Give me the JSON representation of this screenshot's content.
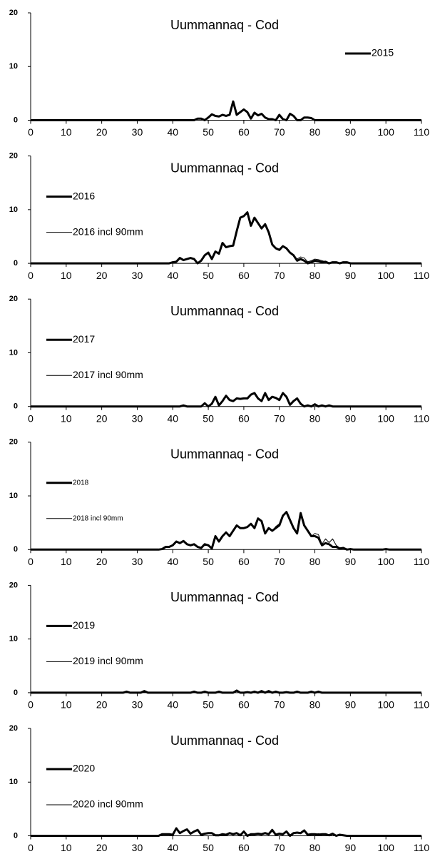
{
  "chart_data": [
    {
      "type": "line",
      "title": "Uummannaq - Cod",
      "legend": "upper right",
      "xlim": [
        0,
        110
      ],
      "ylim": [
        0,
        20
      ],
      "xticks": [
        0,
        10,
        20,
        30,
        40,
        50,
        60,
        70,
        80,
        90,
        100,
        110
      ],
      "yticks": [
        0,
        10,
        20
      ],
      "x": [
        0,
        46,
        47,
        48,
        49,
        50,
        51,
        52,
        53,
        54,
        55,
        56,
        57,
        58,
        59,
        60,
        61,
        62,
        63,
        64,
        65,
        66,
        67,
        68,
        69,
        70,
        71,
        72,
        73,
        74,
        75,
        76,
        77,
        78,
        79,
        80,
        110
      ],
      "series": [
        {
          "name": "2015",
          "color": "#000000",
          "line_width": 3,
          "values": [
            0,
            0,
            0.3,
            0.3,
            0,
            0.5,
            1.1,
            0.8,
            0.7,
            1.0,
            0.8,
            1.0,
            3.5,
            1.0,
            1.5,
            2.0,
            1.5,
            0.3,
            1.4,
            0.9,
            1.2,
            0.5,
            0.2,
            0.2,
            0,
            1.0,
            0.2,
            0,
            1.2,
            0.8,
            0,
            0,
            0.5,
            0.5,
            0.4,
            0,
            0
          ]
        }
      ]
    },
    {
      "type": "line",
      "title": "Uummannaq - Cod",
      "legend": "upper left",
      "xlim": [
        0,
        110
      ],
      "ylim": [
        0,
        20
      ],
      "xticks": [
        0,
        10,
        20,
        30,
        40,
        50,
        60,
        70,
        80,
        90,
        100,
        110
      ],
      "yticks": [
        0,
        10,
        20
      ],
      "x": [
        0,
        38,
        39,
        40,
        41,
        42,
        43,
        44,
        45,
        46,
        47,
        48,
        49,
        50,
        51,
        52,
        53,
        54,
        55,
        56,
        57,
        58,
        59,
        60,
        61,
        62,
        63,
        64,
        65,
        66,
        67,
        68,
        69,
        70,
        71,
        72,
        73,
        74,
        75,
        76,
        77,
        78,
        79,
        80,
        81,
        82,
        83,
        84,
        85,
        86,
        87,
        88,
        89,
        90,
        110
      ],
      "series": [
        {
          "name": "2016",
          "color": "#000000",
          "line_width": 3,
          "values": [
            0,
            0,
            0,
            0.2,
            0.3,
            1.0,
            0.6,
            0.8,
            1.0,
            0.8,
            0,
            0.5,
            1.5,
            2.0,
            0.8,
            2.2,
            1.8,
            3.8,
            3.0,
            3.2,
            3.3,
            6.0,
            8.5,
            8.8,
            9.5,
            7.0,
            8.5,
            7.5,
            6.5,
            7.3,
            5.8,
            3.5,
            2.8,
            2.5,
            3.2,
            2.8,
            2.0,
            1.5,
            0.5,
            0.8,
            0.5,
            0,
            0.2,
            0.5,
            0.4,
            0.2,
            0.3,
            0,
            0.2,
            0.2,
            0,
            0.2,
            0.2,
            0,
            0
          ]
        },
        {
          "name": "2016 incl 90mm",
          "color": "#000000",
          "line_width": 1,
          "values": [
            0,
            0,
            0,
            0.2,
            0.3,
            1.0,
            0.6,
            0.8,
            1.0,
            0.8,
            0,
            0.5,
            1.5,
            2.0,
            0.8,
            2.2,
            1.8,
            3.8,
            3.0,
            3.2,
            3.3,
            6.0,
            8.5,
            8.8,
            9.5,
            7.0,
            8.5,
            7.5,
            6.5,
            7.3,
            5.8,
            3.5,
            2.8,
            2.5,
            3.2,
            2.8,
            2.0,
            1.5,
            0.8,
            1.2,
            1.0,
            0.3,
            0.5,
            0.8,
            0.7,
            0.5,
            0.3,
            0,
            0.2,
            0.2,
            0,
            0.2,
            0.2,
            0,
            0
          ]
        }
      ]
    },
    {
      "type": "line",
      "title": "Uummannaq - Cod",
      "legend": "upper left",
      "xlim": [
        0,
        110
      ],
      "ylim": [
        0,
        20
      ],
      "xticks": [
        0,
        10,
        20,
        30,
        40,
        50,
        60,
        70,
        80,
        90,
        100,
        110
      ],
      "yticks": [
        0,
        10,
        20
      ],
      "x": [
        0,
        42,
        43,
        44,
        45,
        46,
        47,
        48,
        49,
        50,
        51,
        52,
        53,
        54,
        55,
        56,
        57,
        58,
        59,
        60,
        61,
        62,
        63,
        64,
        65,
        66,
        67,
        68,
        69,
        70,
        71,
        72,
        73,
        74,
        75,
        76,
        77,
        78,
        79,
        80,
        81,
        82,
        83,
        84,
        85,
        110
      ],
      "series": [
        {
          "name": "2017",
          "color": "#000000",
          "line_width": 3,
          "values": [
            0,
            0,
            0.2,
            0,
            0,
            0,
            0,
            0,
            0.6,
            0,
            0.5,
            1.8,
            0.2,
            1.0,
            2.0,
            1.2,
            1.0,
            1.5,
            1.4,
            1.5,
            1.5,
            2.2,
            2.5,
            1.5,
            1.0,
            2.5,
            1.2,
            1.8,
            1.6,
            1.2,
            2.5,
            1.8,
            0.3,
            1.0,
            1.5,
            0.5,
            0,
            0.2,
            0,
            0.4,
            0,
            0.2,
            0,
            0.2,
            0,
            0
          ]
        },
        {
          "name": "2017 incl 90mm",
          "color": "#000000",
          "line_width": 1,
          "values": [
            0,
            0,
            0.2,
            0,
            0,
            0,
            0,
            0,
            0.6,
            0,
            0.5,
            1.8,
            0.2,
            1.0,
            2.0,
            1.2,
            1.0,
            1.5,
            1.4,
            1.5,
            1.5,
            2.2,
            2.5,
            1.5,
            1.0,
            2.5,
            1.2,
            1.8,
            1.6,
            1.2,
            2.5,
            1.8,
            0.3,
            1.0,
            1.5,
            0.5,
            0,
            0.3,
            0,
            0.5,
            0,
            0.2,
            0,
            0.2,
            0,
            0
          ]
        }
      ]
    },
    {
      "type": "line",
      "title": "Uummannaq - Cod",
      "legend": "upper left",
      "legend_font_size": 10,
      "xlim": [
        0,
        110
      ],
      "ylim": [
        0,
        20
      ],
      "xticks": [
        0,
        10,
        20,
        30,
        40,
        50,
        60,
        70,
        80,
        90,
        100,
        110
      ],
      "yticks": [
        0,
        10,
        20
      ],
      "x": [
        0,
        36,
        37,
        38,
        39,
        40,
        41,
        42,
        43,
        44,
        45,
        46,
        47,
        48,
        49,
        50,
        51,
        52,
        53,
        54,
        55,
        56,
        57,
        58,
        59,
        60,
        61,
        62,
        63,
        64,
        65,
        66,
        67,
        68,
        69,
        70,
        71,
        72,
        73,
        74,
        75,
        76,
        77,
        78,
        79,
        80,
        81,
        82,
        83,
        84,
        85,
        86,
        87,
        88,
        89,
        90,
        91,
        92,
        93,
        94,
        95,
        96,
        97,
        98,
        99,
        100,
        101,
        110
      ],
      "series": [
        {
          "name": "2018",
          "color": "#000000",
          "line_width": 3,
          "values": [
            0,
            0,
            0.1,
            0.5,
            0.5,
            0.8,
            1.5,
            1.2,
            1.6,
            1.0,
            0.8,
            1.0,
            0.5,
            0.3,
            1.0,
            0.8,
            0.2,
            2.5,
            1.5,
            2.5,
            3.2,
            2.5,
            3.5,
            4.5,
            4.0,
            4.0,
            4.2,
            4.8,
            4.0,
            5.8,
            5.3,
            3.0,
            4.0,
            3.5,
            4.0,
            4.5,
            6.3,
            7.0,
            5.5,
            4.0,
            3.0,
            6.8,
            4.5,
            3.5,
            2.5,
            2.5,
            2.2,
            0.8,
            1.2,
            1.0,
            0.5,
            0.5,
            0.2,
            0.3,
            0,
            0.1,
            0,
            0,
            0,
            0,
            0,
            0,
            0,
            0,
            0,
            0.1,
            0,
            0
          ]
        },
        {
          "name": "2018 incl 90mm",
          "color": "#000000",
          "line_width": 1,
          "values": [
            0,
            0,
            0.1,
            0.5,
            0.5,
            0.8,
            1.5,
            1.2,
            1.6,
            1.0,
            0.8,
            1.0,
            0.5,
            0.3,
            1.0,
            0.8,
            0.2,
            2.5,
            1.5,
            2.5,
            3.2,
            2.5,
            3.5,
            4.5,
            4.0,
            4.0,
            4.2,
            4.8,
            4.0,
            5.8,
            5.3,
            3.0,
            4.0,
            3.5,
            4.3,
            4.8,
            6.3,
            7.0,
            5.5,
            4.0,
            3.0,
            6.8,
            4.5,
            3.5,
            2.5,
            3.0,
            2.8,
            1.0,
            2.0,
            1.3,
            2.0,
            0.8,
            0.3,
            0.3,
            0,
            0.1,
            0,
            0,
            0,
            0,
            0,
            0,
            0,
            0,
            0,
            0.1,
            0,
            0
          ]
        }
      ]
    },
    {
      "type": "line",
      "title": "Uummannaq - Cod",
      "legend": "upper left",
      "xlim": [
        0,
        110
      ],
      "ylim": [
        0,
        20
      ],
      "xticks": [
        0,
        10,
        20,
        30,
        40,
        50,
        60,
        70,
        80,
        90,
        100,
        110
      ],
      "yticks": [
        0,
        10,
        20
      ],
      "x": [
        0,
        25,
        26,
        27,
        28,
        29,
        30,
        31,
        32,
        33,
        34,
        35,
        36,
        37,
        38,
        39,
        40,
        41,
        42,
        43,
        44,
        45,
        46,
        47,
        48,
        49,
        50,
        51,
        52,
        53,
        54,
        55,
        56,
        57,
        58,
        59,
        60,
        61,
        62,
        63,
        64,
        65,
        66,
        67,
        68,
        69,
        70,
        71,
        72,
        73,
        74,
        75,
        76,
        77,
        78,
        79,
        80,
        81,
        82,
        83,
        84,
        85,
        110
      ],
      "series": [
        {
          "name": "2019",
          "color": "#000000",
          "line_width": 3,
          "values": [
            0,
            0,
            0,
            0.2,
            0,
            0,
            0,
            0,
            0.3,
            0,
            0,
            0,
            0,
            0,
            0,
            0,
            0,
            0,
            0,
            0,
            0,
            0,
            0.2,
            0,
            0,
            0.2,
            0,
            0,
            0,
            0.2,
            0,
            0,
            0,
            0,
            0.4,
            0,
            0,
            0.1,
            0,
            0.2,
            0,
            0.3,
            0,
            0.3,
            0,
            0.2,
            0,
            0,
            0.1,
            0,
            0,
            0.2,
            0,
            0,
            0,
            0.2,
            0,
            0.2,
            0,
            0,
            0,
            0,
            0
          ]
        },
        {
          "name": "2019 incl 90mm",
          "color": "#000000",
          "line_width": 1,
          "values": [
            0,
            0,
            0,
            0.2,
            0,
            0,
            0,
            0,
            0.3,
            0.1,
            0,
            0,
            0,
            0,
            0,
            0,
            0,
            0,
            0,
            0,
            0,
            0,
            0.2,
            0,
            0,
            0.2,
            0,
            0,
            0,
            0.2,
            0,
            0,
            0,
            0,
            0.4,
            0,
            0,
            0.1,
            0,
            0.2,
            0,
            0.3,
            0,
            0.3,
            0,
            0.2,
            0,
            0,
            0.1,
            0,
            0,
            0.2,
            0,
            0,
            0,
            0.2,
            0,
            0.2,
            0,
            0,
            0,
            0,
            0
          ]
        }
      ]
    },
    {
      "type": "line",
      "title": "Uummannaq - Cod",
      "legend": "upper left",
      "xlim": [
        0,
        110
      ],
      "ylim": [
        0,
        20
      ],
      "xticks": [
        0,
        10,
        20,
        30,
        40,
        50,
        60,
        70,
        80,
        90,
        100,
        110
      ],
      "yticks": [
        0,
        10,
        20
      ],
      "x": [
        0,
        36,
        37,
        38,
        39,
        40,
        41,
        42,
        43,
        44,
        45,
        46,
        47,
        48,
        49,
        50,
        51,
        52,
        53,
        54,
        55,
        56,
        57,
        58,
        59,
        60,
        61,
        62,
        63,
        64,
        65,
        66,
        67,
        68,
        69,
        70,
        71,
        72,
        73,
        74,
        75,
        76,
        77,
        78,
        79,
        80,
        81,
        82,
        83,
        84,
        85,
        86,
        87,
        88,
        89,
        90,
        110
      ],
      "series": [
        {
          "name": "2020",
          "color": "#000000",
          "line_width": 3,
          "values": [
            0,
            0,
            0.3,
            0.3,
            0.3,
            0.2,
            1.4,
            0.5,
            0.9,
            1.2,
            0.4,
            0.8,
            1.1,
            0.2,
            0.4,
            0.5,
            0.5,
            0.1,
            0.1,
            0.3,
            0.2,
            0.5,
            0.3,
            0.5,
            0.1,
            0.8,
            0,
            0.3,
            0.3,
            0.4,
            0.3,
            0.5,
            0.3,
            1.1,
            0.2,
            0.4,
            0.3,
            0.8,
            0,
            0.5,
            0.6,
            0.5,
            1.0,
            0.2,
            0.3,
            0.3,
            0.2,
            0.3,
            0.3,
            0.1,
            0.4,
            0,
            0.2,
            0.1,
            0,
            0,
            0
          ]
        },
        {
          "name": "2020 incl 90mm",
          "color": "#000000",
          "line_width": 1,
          "values": [
            0,
            0,
            0.3,
            0.3,
            0.3,
            0.2,
            1.4,
            0.5,
            0.9,
            1.2,
            0.4,
            0.8,
            1.1,
            0.2,
            0.4,
            0.5,
            0.5,
            0.1,
            0.1,
            0.3,
            0.2,
            0.5,
            0.3,
            0.5,
            0.1,
            0.8,
            0,
            0.3,
            0.3,
            0.4,
            0.3,
            0.5,
            0.3,
            1.1,
            0.2,
            0.4,
            0.3,
            0.8,
            0,
            0.5,
            0.6,
            0.5,
            1.0,
            0.2,
            0.3,
            0.3,
            0.4,
            0.3,
            0.3,
            0.1,
            0.4,
            0,
            0.2,
            0.1,
            0,
            0,
            0
          ]
        }
      ]
    }
  ]
}
